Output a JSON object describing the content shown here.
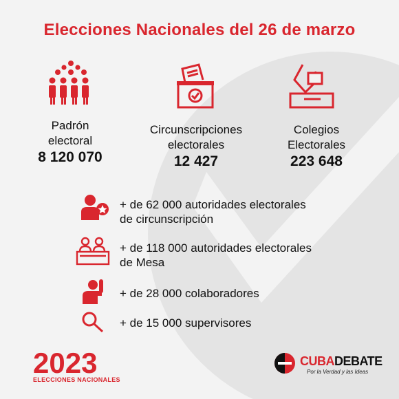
{
  "title": "Elecciones Nacionales del 26 de marzo",
  "stats": [
    {
      "label_1": "Padrón",
      "label_2": "electoral",
      "value": "8 120 070",
      "icon": "people-crowd-icon"
    },
    {
      "label_1": "Circunscripciones",
      "label_2": "electorales",
      "value": "12 427",
      "icon": "ballot-box-icon"
    },
    {
      "label_1": "Colegios",
      "label_2": "Electorales",
      "value": "223 648",
      "icon": "hand-voting-icon"
    }
  ],
  "items": [
    {
      "line_1": "+ de 62 000 autoridades electorales",
      "line_2": "de circunscripción",
      "icon": "person-badge-icon"
    },
    {
      "line_1": "+ de 118 000 autoridades electorales",
      "line_2": "de Mesa",
      "icon": "table-officials-icon"
    },
    {
      "line_1": "+ de 28 000 colaboradores",
      "line_2": "",
      "icon": "raised-hand-person-icon"
    },
    {
      "line_1": "+ de 15 000 supervisores",
      "line_2": "",
      "icon": "magnifier-icon"
    }
  ],
  "footer": {
    "year_logo": "2023",
    "year_sub": "ELECCIONES NACIONALES",
    "brand_a": "CUBA",
    "brand_b": "DEBATE",
    "brand_tag": "Por la Verdad y las Ideas"
  },
  "colors": {
    "accent": "#d9262e",
    "background": "#f3f3f3"
  }
}
